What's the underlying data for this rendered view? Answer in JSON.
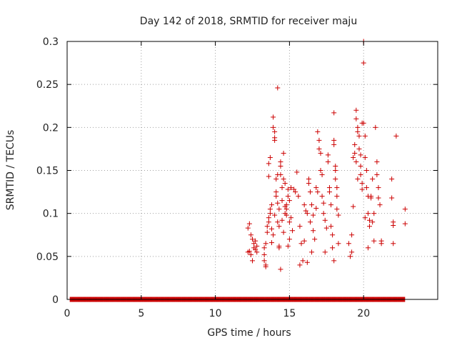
{
  "chart_data": {
    "type": "scatter",
    "title": "Day 142 of 2018, SRMTID for receiver maju",
    "xlabel": "GPS time / hours",
    "ylabel": "SRMTID / TECUs",
    "xlim": [
      0,
      25
    ],
    "ylim": [
      0,
      0.3
    ],
    "x_ticks": [
      0,
      5,
      10,
      15,
      20
    ],
    "x_tick_labels": [
      "0",
      "5",
      "10",
      "15",
      "20"
    ],
    "y_ticks": [
      0,
      0.05,
      0.1,
      0.15,
      0.2,
      0.25,
      0.3
    ],
    "y_tick_labels": [
      "0",
      "0.05",
      "0.1",
      "0.15",
      "0.2",
      "0.25",
      "0.3"
    ],
    "grid": true,
    "marker": "+",
    "color": "#cc0000",
    "zero_baseline": {
      "y": 0,
      "x_start": 0.2,
      "x_end": 22.8
    },
    "series": [
      {
        "name": "SRMTID",
        "points": [
          [
            12.2,
            0.083
          ],
          [
            12.3,
            0.088
          ],
          [
            12.2,
            0.055
          ],
          [
            12.4,
            0.075
          ],
          [
            12.5,
            0.07
          ],
          [
            12.6,
            0.065
          ],
          [
            12.6,
            0.06
          ],
          [
            12.7,
            0.058
          ],
          [
            12.4,
            0.052
          ],
          [
            12.5,
            0.045
          ],
          [
            12.8,
            0.062
          ],
          [
            12.8,
            0.055
          ],
          [
            12.3,
            0.056
          ],
          [
            12.7,
            0.068
          ],
          [
            13.3,
            0.06
          ],
          [
            13.3,
            0.052
          ],
          [
            13.3,
            0.045
          ],
          [
            13.4,
            0.04
          ],
          [
            13.4,
            0.038
          ],
          [
            13.4,
            0.065
          ],
          [
            13.5,
            0.085
          ],
          [
            13.5,
            0.078
          ],
          [
            13.6,
            0.09
          ],
          [
            13.6,
            0.095
          ],
          [
            13.6,
            0.143
          ],
          [
            13.6,
            0.158
          ],
          [
            13.7,
            0.165
          ],
          [
            13.7,
            0.105
          ],
          [
            13.7,
            0.1
          ],
          [
            13.8,
            0.11
          ],
          [
            13.9,
            0.212
          ],
          [
            13.9,
            0.2
          ],
          [
            14.0,
            0.195
          ],
          [
            14.0,
            0.188
          ],
          [
            14.0,
            0.185
          ],
          [
            13.9,
            0.075
          ],
          [
            13.8,
            0.066
          ],
          [
            14.1,
            0.12
          ],
          [
            14.1,
            0.125
          ],
          [
            14.1,
            0.14
          ],
          [
            14.2,
            0.246
          ],
          [
            14.2,
            0.145
          ],
          [
            14.2,
            0.09
          ],
          [
            14.3,
            0.085
          ],
          [
            14.3,
            0.06
          ],
          [
            14.3,
            0.062
          ],
          [
            14.4,
            0.145
          ],
          [
            14.4,
            0.155
          ],
          [
            14.4,
            0.16
          ],
          [
            14.4,
            0.035
          ],
          [
            14.5,
            0.13
          ],
          [
            14.5,
            0.115
          ],
          [
            14.6,
            0.17
          ],
          [
            14.6,
            0.14
          ],
          [
            14.7,
            0.1
          ],
          [
            14.7,
            0.108
          ],
          [
            14.7,
            0.135
          ],
          [
            14.8,
            0.098
          ],
          [
            14.8,
            0.105
          ],
          [
            14.8,
            0.11
          ],
          [
            14.9,
            0.12
          ],
          [
            14.9,
            0.128
          ],
          [
            14.9,
            0.062
          ],
          [
            15.0,
            0.115
          ],
          [
            15.0,
            0.09
          ],
          [
            15.0,
            0.07
          ],
          [
            14.6,
            0.078
          ],
          [
            14.5,
            0.092
          ],
          [
            14.3,
            0.105
          ],
          [
            14.2,
            0.112
          ],
          [
            14.0,
            0.098
          ],
          [
            13.8,
            0.082
          ],
          [
            15.1,
            0.13
          ],
          [
            15.1,
            0.095
          ],
          [
            15.2,
            0.08
          ],
          [
            15.3,
            0.128
          ],
          [
            15.4,
            0.125
          ],
          [
            15.5,
            0.148
          ],
          [
            15.6,
            0.12
          ],
          [
            15.7,
            0.085
          ],
          [
            15.8,
            0.065
          ],
          [
            15.9,
            0.045
          ],
          [
            16.0,
            0.068
          ],
          [
            16.0,
            0.11
          ],
          [
            16.1,
            0.103
          ],
          [
            16.2,
            0.1
          ],
          [
            16.3,
            0.135
          ],
          [
            16.3,
            0.14
          ],
          [
            16.4,
            0.125
          ],
          [
            16.4,
            0.09
          ],
          [
            16.5,
            0.11
          ],
          [
            16.6,
            0.098
          ],
          [
            16.6,
            0.08
          ],
          [
            16.7,
            0.07
          ],
          [
            16.8,
            0.106
          ],
          [
            16.8,
            0.13
          ],
          [
            16.9,
            0.125
          ],
          [
            16.9,
            0.195
          ],
          [
            17.0,
            0.185
          ],
          [
            17.0,
            0.175
          ],
          [
            17.1,
            0.17
          ],
          [
            17.1,
            0.15
          ],
          [
            17.2,
            0.145
          ],
          [
            17.2,
            0.12
          ],
          [
            17.3,
            0.112
          ],
          [
            17.3,
            0.1
          ],
          [
            17.4,
            0.092
          ],
          [
            17.5,
            0.083
          ],
          [
            17.6,
            0.168
          ],
          [
            17.6,
            0.16
          ],
          [
            17.7,
            0.13
          ],
          [
            17.7,
            0.125
          ],
          [
            17.8,
            0.11
          ],
          [
            17.8,
            0.085
          ],
          [
            17.9,
            0.075
          ],
          [
            17.9,
            0.06
          ],
          [
            18.0,
            0.217
          ],
          [
            18.0,
            0.185
          ],
          [
            18.0,
            0.18
          ],
          [
            18.1,
            0.155
          ],
          [
            18.1,
            0.15
          ],
          [
            18.1,
            0.14
          ],
          [
            18.2,
            0.13
          ],
          [
            18.2,
            0.12
          ],
          [
            18.2,
            0.105
          ],
          [
            18.3,
            0.098
          ],
          [
            18.3,
            0.065
          ],
          [
            18.0,
            0.045
          ],
          [
            16.2,
            0.043
          ],
          [
            16.5,
            0.055
          ],
          [
            17.4,
            0.055
          ],
          [
            15.7,
            0.04
          ],
          [
            19.0,
            0.065
          ],
          [
            19.1,
            0.05
          ],
          [
            19.2,
            0.055
          ],
          [
            19.2,
            0.075
          ],
          [
            19.3,
            0.108
          ],
          [
            19.3,
            0.165
          ],
          [
            19.4,
            0.17
          ],
          [
            19.4,
            0.18
          ],
          [
            19.5,
            0.21
          ],
          [
            19.5,
            0.22
          ],
          [
            19.6,
            0.2
          ],
          [
            19.6,
            0.195
          ],
          [
            19.7,
            0.19
          ],
          [
            19.7,
            0.175
          ],
          [
            19.8,
            0.168
          ],
          [
            19.8,
            0.155
          ],
          [
            19.9,
            0.135
          ],
          [
            19.9,
            0.128
          ],
          [
            20.0,
            0.3
          ],
          [
            20.0,
            0.275
          ],
          [
            20.0,
            0.205
          ],
          [
            20.1,
            0.19
          ],
          [
            20.1,
            0.165
          ],
          [
            20.2,
            0.15
          ],
          [
            20.2,
            0.13
          ],
          [
            20.3,
            0.12
          ],
          [
            20.3,
            0.1
          ],
          [
            20.4,
            0.092
          ],
          [
            20.4,
            0.085
          ],
          [
            20.5,
            0.118
          ],
          [
            20.5,
            0.12
          ],
          [
            20.6,
            0.14
          ],
          [
            20.6,
            0.09
          ],
          [
            20.7,
            0.1
          ],
          [
            20.7,
            0.068
          ],
          [
            20.8,
            0.2
          ],
          [
            20.9,
            0.16
          ],
          [
            20.9,
            0.145
          ],
          [
            21.0,
            0.13
          ],
          [
            21.0,
            0.118
          ],
          [
            21.1,
            0.11
          ],
          [
            21.2,
            0.068
          ],
          [
            21.2,
            0.065
          ],
          [
            19.5,
            0.16
          ],
          [
            19.6,
            0.14
          ],
          [
            19.8,
            0.145
          ],
          [
            19.9,
            0.205
          ],
          [
            20.1,
            0.095
          ],
          [
            20.3,
            0.06
          ],
          [
            21.9,
            0.14
          ],
          [
            21.9,
            0.118
          ],
          [
            22.0,
            0.09
          ],
          [
            22.0,
            0.086
          ],
          [
            22.0,
            0.065
          ],
          [
            22.2,
            0.19
          ],
          [
            22.8,
            0.105
          ],
          [
            22.8,
            0.088
          ]
        ]
      }
    ]
  }
}
